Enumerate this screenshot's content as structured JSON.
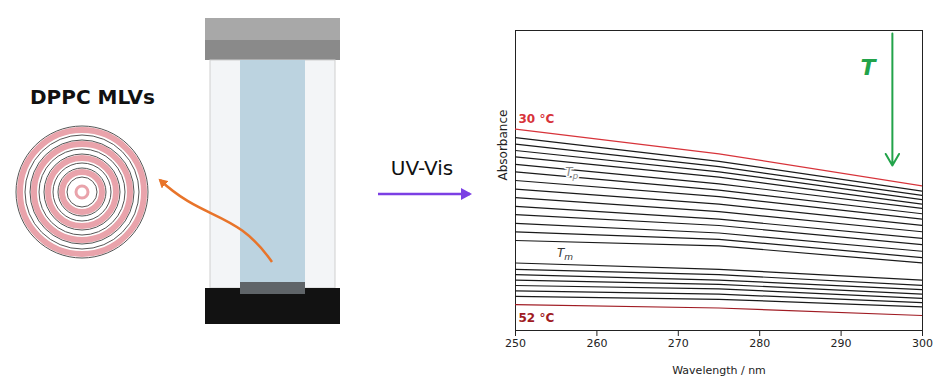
{
  "diagram": {
    "sample_label": "DPPC MLVs",
    "method_label": "UV-Vis"
  },
  "chart_data": {
    "type": "line",
    "x_label": "Wavelength / nm",
    "y_label": "Absorbance",
    "x": [
      250,
      275,
      300
    ],
    "xlim": [
      250,
      300
    ],
    "xticks": [
      250,
      260,
      270,
      280,
      290,
      300
    ],
    "ylim": [
      0,
      1
    ],
    "yticks": [],
    "tick_labels": "x",
    "grid": false,
    "series": [
      {
        "name": "30 °C",
        "color": "#d7333a",
        "values": [
          0.671,
          0.589,
          0.482
        ]
      },
      {
        "color": "#1a1a1a",
        "values": [
          0.643,
          0.564,
          0.464
        ]
      },
      {
        "color": "#1a1a1a",
        "values": [
          0.621,
          0.546,
          0.45
        ]
      },
      {
        "color": "#1a1a1a",
        "values": [
          0.6,
          0.529,
          0.436
        ]
      },
      {
        "color": "#1a1a1a",
        "values": [
          0.579,
          0.511,
          0.421
        ]
      },
      {
        "color": "#1a1a1a",
        "values": [
          0.554,
          0.489,
          0.407
        ]
      },
      {
        "color": "#1a1a1a",
        "values": [
          0.529,
          0.468,
          0.389
        ]
      },
      {
        "color": "#1a1a1a",
        "values": [
          0.5,
          0.446,
          0.371
        ]
      },
      {
        "color": "#1a1a1a",
        "values": [
          0.471,
          0.421,
          0.35
        ]
      },
      {
        "color": "#1a1a1a",
        "values": [
          0.443,
          0.396,
          0.329
        ]
      },
      {
        "color": "#1a1a1a",
        "values": [
          0.414,
          0.371,
          0.307
        ]
      },
      {
        "color": "#1a1a1a",
        "values": [
          0.386,
          0.35,
          0.286
        ]
      },
      {
        "color": "#1a1a1a",
        "values": [
          0.357,
          0.325,
          0.264
        ]
      },
      {
        "color": "#1a1a1a",
        "values": [
          0.329,
          0.304,
          0.243
        ]
      },
      {
        "color": "#1a1a1a",
        "values": [
          0.3,
          0.282,
          0.225
        ]
      },
      {
        "color": "#1a1a1a",
        "values": [
          0.225,
          0.204,
          0.168
        ]
      },
      {
        "color": "#1a1a1a",
        "values": [
          0.204,
          0.186,
          0.15
        ]
      },
      {
        "color": "#1a1a1a",
        "values": [
          0.186,
          0.168,
          0.136
        ]
      },
      {
        "color": "#1a1a1a",
        "values": [
          0.168,
          0.154,
          0.121
        ]
      },
      {
        "color": "#1a1a1a",
        "values": [
          0.15,
          0.139,
          0.107
        ]
      },
      {
        "color": "#1a1a1a",
        "values": [
          0.132,
          0.121,
          0.093
        ]
      },
      {
        "color": "#1a1a1a",
        "values": [
          0.114,
          0.104,
          0.079
        ]
      },
      {
        "name": "52 °C",
        "color": "#a01b23",
        "values": [
          0.086,
          0.075,
          0.05
        ]
      }
    ],
    "annotations": [
      {
        "text": "T",
        "subscript": "p",
        "x": 257,
        "y": 0.529,
        "color": "#888888"
      },
      {
        "text": "T",
        "subscript": "m",
        "x": 256,
        "y": 0.257,
        "color": "#333333"
      },
      {
        "text": "T",
        "x": 293.3,
        "y": 0.875,
        "color": "#22a34a",
        "arrow": {
          "x": 296.3,
          "y1": 0.99,
          "y2": 0.55
        }
      }
    ]
  }
}
